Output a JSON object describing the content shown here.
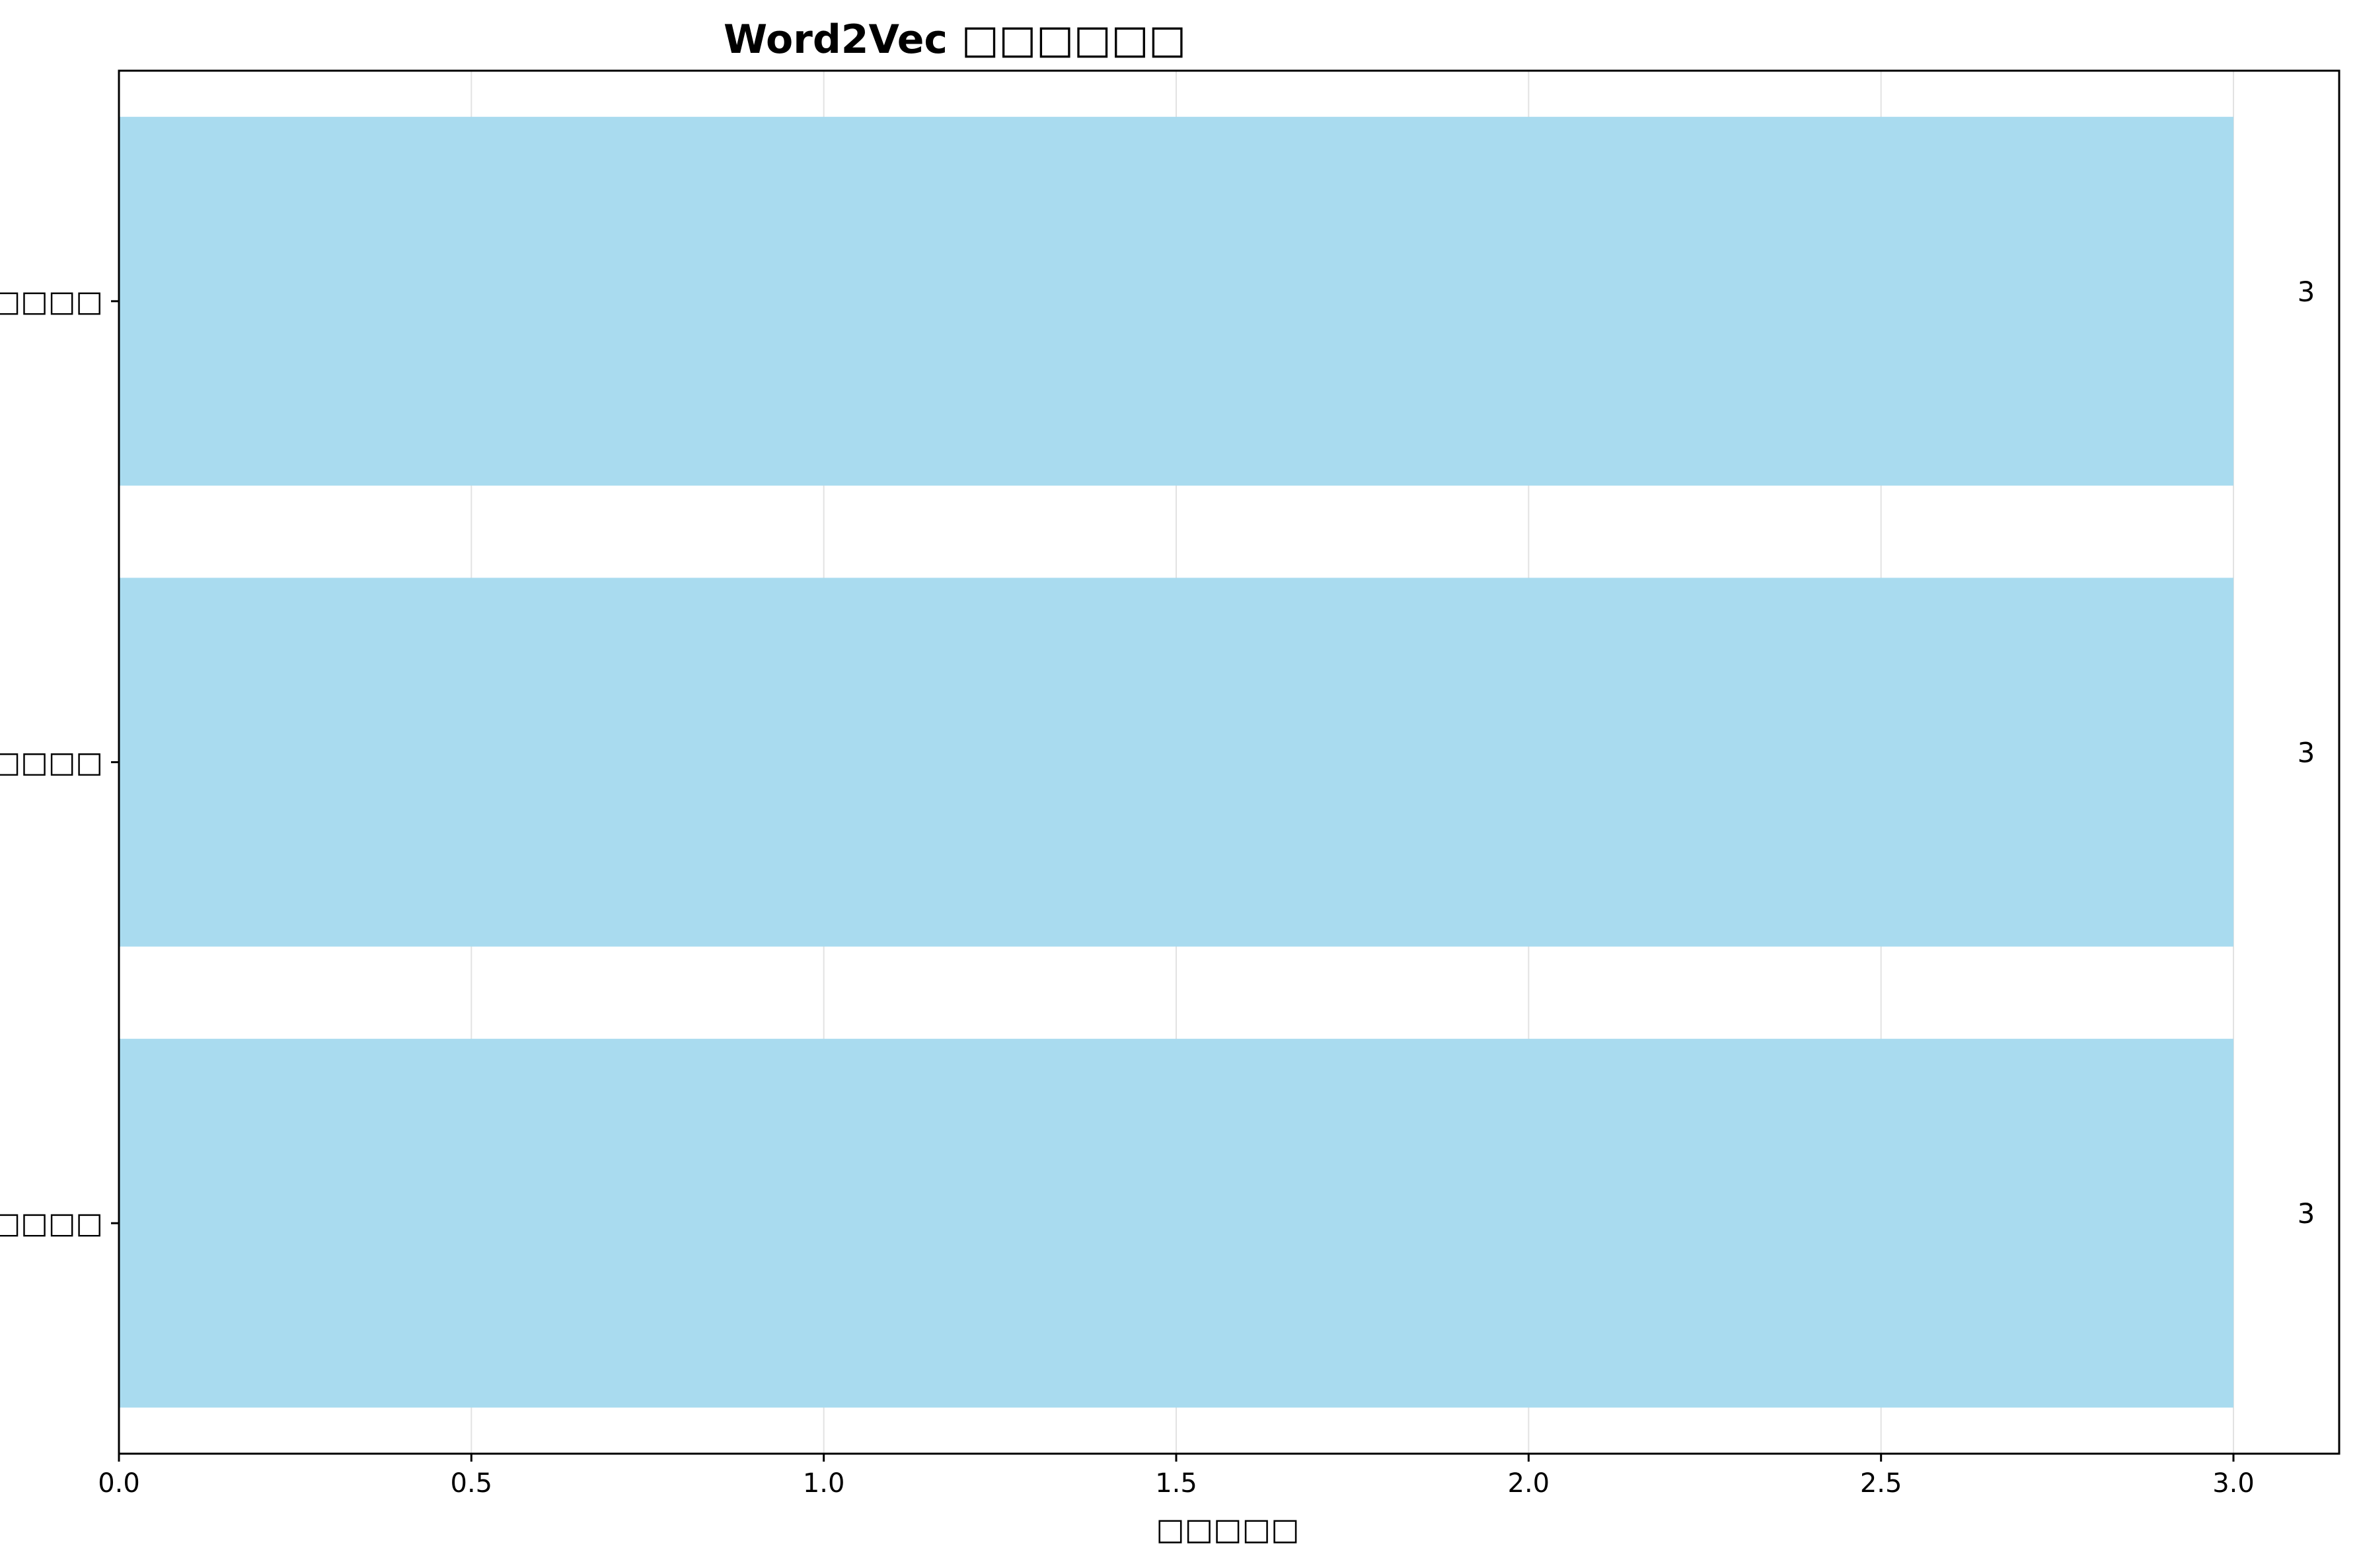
{
  "chart_data": {
    "type": "bar",
    "orientation": "horizontal",
    "title": "Word2Vec □□□□□□",
    "xlabel": "□□□□□",
    "ylabel": "",
    "categories": [
      "□□□□",
      "□□□□",
      "□□□□"
    ],
    "values": [
      3,
      3,
      3
    ],
    "data_labels": [
      "3",
      "3",
      "3"
    ],
    "xlim": [
      0,
      3.15
    ],
    "x_ticks": [
      0.0,
      0.5,
      1.0,
      1.5,
      2.0,
      2.5,
      3.0
    ],
    "x_tick_labels": [
      "0.0",
      "0.5",
      "1.0",
      "1.5",
      "2.0",
      "2.5",
      "3.0"
    ],
    "grid": "vertical",
    "legend": "none",
    "bar_color": "#a9dbef",
    "grid_color": "#e2e2e2"
  }
}
